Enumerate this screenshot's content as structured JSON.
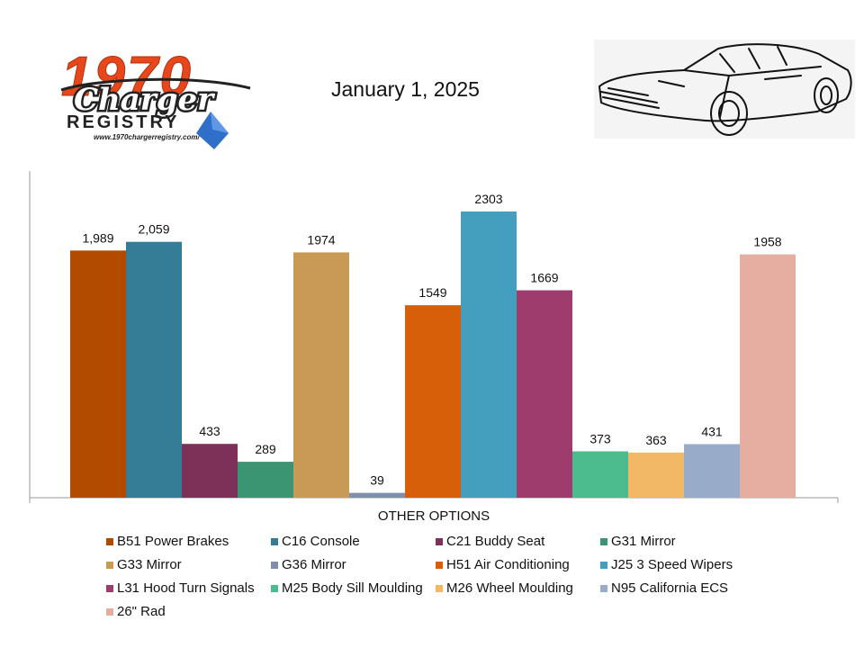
{
  "header": {
    "logo_year": "1970",
    "logo_script": "Charger",
    "logo_word": "REGISTRY",
    "logo_url": "www.1970chargerregistry.com/",
    "date": "January 1, 2025"
  },
  "chart_data": {
    "type": "bar",
    "categories": [
      "OTHER OPTIONS"
    ],
    "xlabel": "OTHER OPTIONS",
    "ylabel": "",
    "ylim": [
      0,
      2600
    ],
    "grid": false,
    "legend_position": "bottom",
    "series": [
      {
        "name": "B51 Power Brakes",
        "values": [
          1989
        ],
        "label": "1,989",
        "color": "#b24a00"
      },
      {
        "name": "C16 Console",
        "values": [
          2059
        ],
        "label": "2,059",
        "color": "#357d96"
      },
      {
        "name": "C21 Buddy Seat",
        "values": [
          433
        ],
        "label": "433",
        "color": "#7e3158"
      },
      {
        "name": "G31 Mirror",
        "values": [
          289
        ],
        "label": "289",
        "color": "#3b9472"
      },
      {
        "name": "G33 Mirror",
        "values": [
          1974
        ],
        "label": "1974",
        "color": "#c99a55"
      },
      {
        "name": "G36 Mirror",
        "values": [
          39
        ],
        "label": "39",
        "color": "#8090aa"
      },
      {
        "name": "H51 Air Conditioning",
        "values": [
          1549
        ],
        "label": "1549",
        "color": "#d85f0a"
      },
      {
        "name": "J25 3 Speed Wipers",
        "values": [
          2303
        ],
        "label": "2303",
        "color": "#449fbf"
      },
      {
        "name": "L31 Hood Turn Signals",
        "values": [
          1669
        ],
        "label": "1669",
        "color": "#9e3c6e"
      },
      {
        "name": "M25 Body Sill Moulding",
        "values": [
          373
        ],
        "label": "373",
        "color": "#4cbb8e"
      },
      {
        "name": "M26 Wheel Moulding",
        "values": [
          363
        ],
        "label": "363",
        "color": "#f2b866"
      },
      {
        "name": "N95 California ECS",
        "values": [
          431
        ],
        "label": "431",
        "color": "#98acc9"
      },
      {
        "name": "26\" Rad",
        "values": [
          1958
        ],
        "label": "1958",
        "color": "#e6aea0"
      }
    ]
  }
}
